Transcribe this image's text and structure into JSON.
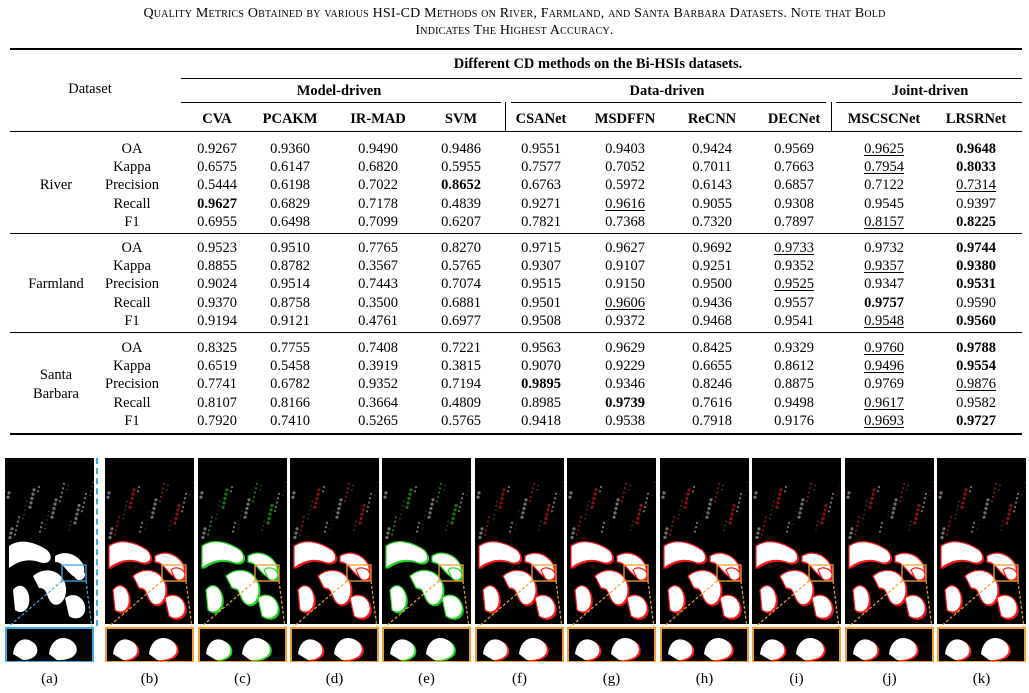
{
  "caption": {
    "line1": "Quality Metrics Obtained by various HSI-CD Methods on River, Farmland, and Santa Barbara Datasets. Note that Bold",
    "line2": "Indicates The Highest Accuracy."
  },
  "table": {
    "dataset_header": "Dataset",
    "super_header": "Different CD methods on the Bi-HSIs datasets.",
    "groups": [
      "Model-driven",
      "Data-driven",
      "Joint-driven"
    ],
    "methods": [
      "CVA",
      "PCAKM",
      "IR-MAD",
      "SVM",
      "CSANet",
      "MSDFFN",
      "ReCNN",
      "DECNet",
      "MSCSCNet",
      "LRSRNet"
    ],
    "datasets": [
      {
        "name": "River",
        "rows": [
          {
            "metric": "OA",
            "values": [
              "0.9267",
              "0.9360",
              "0.9490",
              "0.9486",
              "0.9551",
              "0.9403",
              "0.9424",
              "0.9569",
              "0.9625",
              "0.9648"
            ],
            "bold": [
              9
            ],
            "underline": [
              8
            ]
          },
          {
            "metric": "Kappa",
            "values": [
              "0.6575",
              "0.6147",
              "0.6820",
              "0.5955",
              "0.7577",
              "0.7052",
              "0.7011",
              "0.7663",
              "0.7954",
              "0.8033"
            ],
            "bold": [
              9
            ],
            "underline": [
              8
            ]
          },
          {
            "metric": "Precision",
            "values": [
              "0.5444",
              "0.6198",
              "0.7022",
              "0.8652",
              "0.6763",
              "0.5972",
              "0.6143",
              "0.6857",
              "0.7122",
              "0.7314"
            ],
            "bold": [
              3
            ],
            "underline": [
              9
            ]
          },
          {
            "metric": "Recall",
            "values": [
              "0.9627",
              "0.6829",
              "0.7178",
              "0.4839",
              "0.9271",
              "0.9616",
              "0.9055",
              "0.9308",
              "0.9545",
              "0.9397"
            ],
            "bold": [
              0
            ],
            "underline": [
              5
            ]
          },
          {
            "metric": "F1",
            "values": [
              "0.6955",
              "0.6498",
              "0.7099",
              "0.6207",
              "0.7821",
              "0.7368",
              "0.7320",
              "0.7897",
              "0.8157",
              "0.8225"
            ],
            "bold": [
              9
            ],
            "underline": [
              8
            ]
          }
        ]
      },
      {
        "name": "Farmland",
        "rows": [
          {
            "metric": "OA",
            "values": [
              "0.9523",
              "0.9510",
              "0.7765",
              "0.8270",
              "0.9715",
              "0.9627",
              "0.9692",
              "0.9733",
              "0.9732",
              "0.9744"
            ],
            "bold": [
              9
            ],
            "underline": [
              7
            ]
          },
          {
            "metric": "Kappa",
            "values": [
              "0.8855",
              "0.8782",
              "0.3567",
              "0.5765",
              "0.9307",
              "0.9107",
              "0.9251",
              "0.9352",
              "0.9357",
              "0.9380"
            ],
            "bold": [
              9
            ],
            "underline": [
              8
            ]
          },
          {
            "metric": "Precision",
            "values": [
              "0.9024",
              "0.9514",
              "0.7443",
              "0.7074",
              "0.9515",
              "0.9150",
              "0.9500",
              "0.9525",
              "0.9347",
              "0.9531"
            ],
            "bold": [
              9
            ],
            "underline": [
              7
            ]
          },
          {
            "metric": "Recall",
            "values": [
              "0.9370",
              "0.8758",
              "0.3500",
              "0.6881",
              "0.9501",
              "0.9606",
              "0.9436",
              "0.9557",
              "0.9757",
              "0.9590"
            ],
            "bold": [
              8
            ],
            "underline": [
              5
            ]
          },
          {
            "metric": "F1",
            "values": [
              "0.9194",
              "0.9121",
              "0.4761",
              "0.6977",
              "0.9508",
              "0.9372",
              "0.9468",
              "0.9541",
              "0.9548",
              "0.9560"
            ],
            "bold": [
              9
            ],
            "underline": [
              8
            ]
          }
        ]
      },
      {
        "name_line1": "Santa",
        "name_line2": "Barbara",
        "rows": [
          {
            "metric": "OA",
            "values": [
              "0.8325",
              "0.7755",
              "0.7408",
              "0.7221",
              "0.9563",
              "0.9629",
              "0.8425",
              "0.9329",
              "0.9760",
              "0.9788"
            ],
            "bold": [
              9
            ],
            "underline": [
              8
            ]
          },
          {
            "metric": "Kappa",
            "values": [
              "0.6519",
              "0.5458",
              "0.3919",
              "0.3815",
              "0.9070",
              "0.9229",
              "0.6655",
              "0.8612",
              "0.9496",
              "0.9554"
            ],
            "bold": [
              9
            ],
            "underline": [
              8
            ]
          },
          {
            "metric": "Precision",
            "values": [
              "0.7741",
              "0.6782",
              "0.9352",
              "0.7194",
              "0.9895",
              "0.9346",
              "0.8246",
              "0.8875",
              "0.9769",
              "0.9876"
            ],
            "bold": [
              4
            ],
            "underline": [
              9
            ]
          },
          {
            "metric": "Recall",
            "values": [
              "0.8107",
              "0.8166",
              "0.3664",
              "0.4809",
              "0.8985",
              "0.9739",
              "0.7616",
              "0.9498",
              "0.9617",
              "0.9582"
            ],
            "bold": [
              5
            ],
            "underline": [
              8
            ]
          },
          {
            "metric": "F1",
            "values": [
              "0.7920",
              "0.7410",
              "0.5265",
              "0.5765",
              "0.9418",
              "0.9538",
              "0.7918",
              "0.9176",
              "0.9693",
              "0.9727"
            ],
            "bold": [
              9
            ],
            "underline": [
              8
            ]
          }
        ]
      }
    ]
  },
  "figure": {
    "panel_labels": [
      "(a)",
      "(b)",
      "(c)",
      "(d)",
      "(e)",
      "(f)",
      "(g)",
      "(h)",
      "(i)",
      "(j)",
      "(k)"
    ],
    "panel_tints": [
      "none",
      "red",
      "green",
      "red",
      "green",
      "red",
      "red",
      "red",
      "red",
      "red",
      "red"
    ],
    "colors": {
      "background": "#000000",
      "change": "#ffffff",
      "false_alarm": "#ff1a1a",
      "missed": "#22dd22",
      "zoom_box_a": "#3fa9e0",
      "zoom_box": "#f0a030"
    }
  }
}
